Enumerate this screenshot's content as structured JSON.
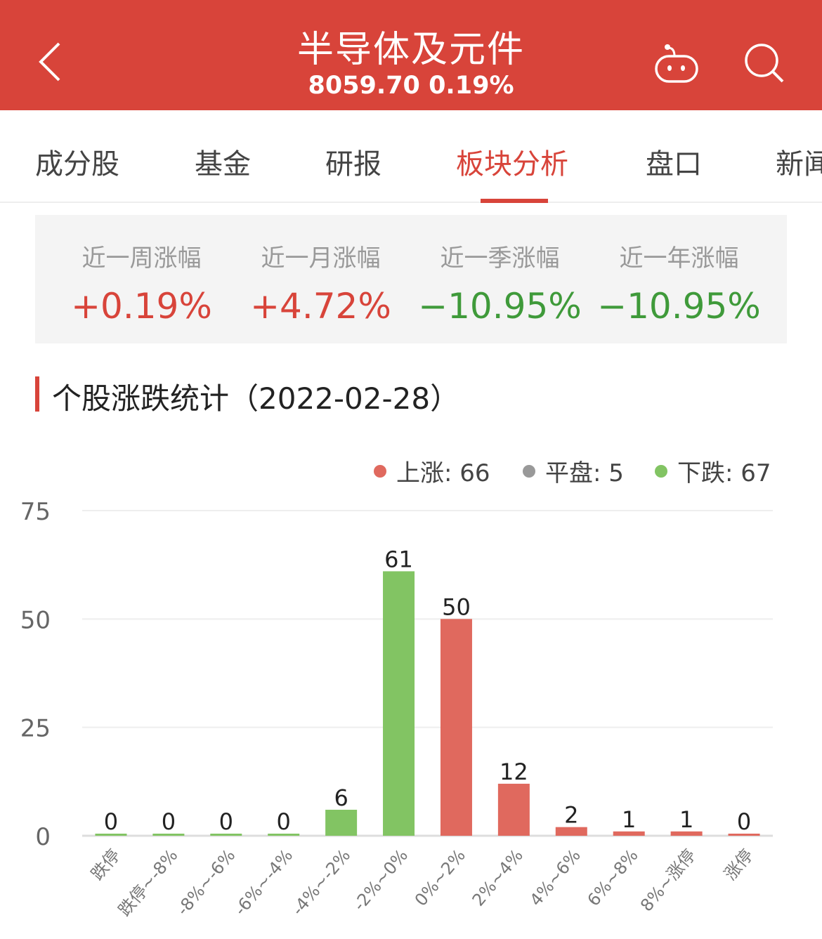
{
  "header": {
    "title": "半导体及元件",
    "subtitle": "8059.70 0.19%",
    "back_icon": "chevron-left-icon",
    "robot_icon": "robot-icon",
    "search_icon": "search-icon",
    "bg_color": "#d8443a"
  },
  "tabs": [
    {
      "label": "成分股"
    },
    {
      "label": "基金"
    },
    {
      "label": "研报"
    },
    {
      "label": "板块分析",
      "active": true
    },
    {
      "label": "盘口"
    },
    {
      "label": "新闻"
    }
  ],
  "stats": [
    {
      "label": "近一周涨幅",
      "value": "+0.19%",
      "dir": "up"
    },
    {
      "label": "近一月涨幅",
      "value": "+4.72%",
      "dir": "up"
    },
    {
      "label": "近一季涨幅",
      "value": "−10.95%",
      "dir": "down"
    },
    {
      "label": "近一年涨幅",
      "value": "−10.95%",
      "dir": "down"
    }
  ],
  "colors": {
    "up": "#d8443a",
    "down": "#3f9a3a",
    "bar_up": "#e0695e",
    "bar_down": "#82c463",
    "flat": "#999999"
  },
  "section": {
    "title": "个股涨跌统计（2022-02-28）"
  },
  "legend": [
    {
      "label": "上涨: 66",
      "color": "#e0695e"
    },
    {
      "label": "平盘: 5",
      "color": "#999999"
    },
    {
      "label": "下跌: 67",
      "color": "#82c463"
    }
  ],
  "chart_data": {
    "type": "bar",
    "categories": [
      "跌停",
      "跌停~-8%",
      "-8%~-6%",
      "-6%~-4%",
      "-4%~-2%",
      "-2%~0%",
      "0%~2%",
      "2%~4%",
      "4%~6%",
      "6%~8%",
      "8%~涨停",
      "涨停"
    ],
    "values": [
      0,
      0,
      0,
      0,
      6,
      61,
      50,
      12,
      2,
      1,
      1,
      0
    ],
    "bar_colors": [
      "down",
      "down",
      "down",
      "down",
      "down",
      "down",
      "up",
      "up",
      "up",
      "up",
      "up",
      "up"
    ],
    "ylim": [
      0,
      75
    ],
    "yticks": [
      0,
      25,
      50,
      75
    ],
    "grid": true,
    "legend_placement": "top-right"
  }
}
